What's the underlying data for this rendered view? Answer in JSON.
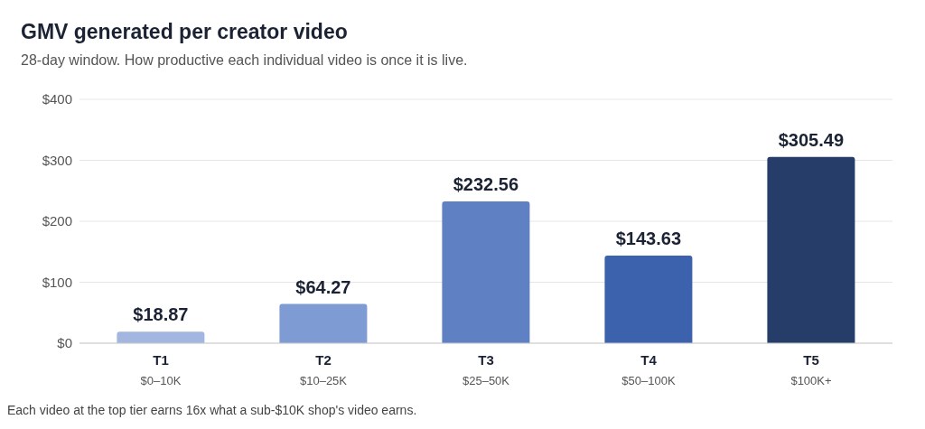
{
  "chart_data": {
    "type": "bar",
    "title": "GMV generated per creator video",
    "subtitle": "28-day window. How productive each individual video is once it is live.",
    "categories": [
      "T1\n$0–10K",
      "T2\n$10–25K",
      "T3\n$25–50K",
      "T4\n$50–100K",
      "T5\n$100K+"
    ],
    "values": [
      18.87,
      64.27,
      232.56,
      143.63,
      305.49
    ],
    "colors": [
      "#a3b6e0",
      "#7f9bd4",
      "#5f80c3",
      "#3d62ad",
      "#263c69"
    ],
    "value_labels": [
      "$18.87",
      "$64.27",
      "$232.56",
      "$143.63",
      "$305.49"
    ],
    "ylim": [
      0,
      400
    ],
    "yticks": [
      {
        "value": 0,
        "label": "$0"
      },
      {
        "value": 100,
        "label": "$100"
      },
      {
        "value": 200,
        "label": "$200"
      },
      {
        "value": 300,
        "label": "$300"
      },
      {
        "value": 400,
        "label": "$400"
      }
    ],
    "grid": "y",
    "annotations": [
      "Each video at the top tier earns 16x what a sub-$10K shop's video earns."
    ]
  }
}
